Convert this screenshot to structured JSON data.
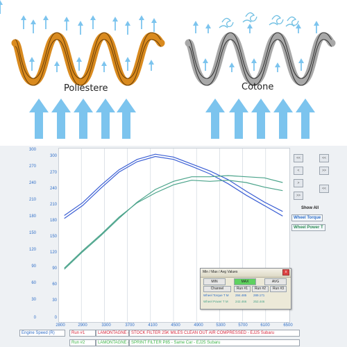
{
  "top_illustration": {
    "left_label": "Poliestere",
    "right_label": "Cotone",
    "colors": {
      "polyester": "#d98a1e",
      "cotton": "#a8a8a8",
      "air_arrow": "#7cc4ee",
      "dirt": "#9ad3ee"
    },
    "icons": {
      "small_arrow": "up-arrow-icon",
      "large_arrow": "large-up-arrow-icon",
      "swirl": "dust-swirl-icon"
    }
  },
  "dyno": {
    "y_ticks_left": [
      "300",
      "270",
      "240",
      "210",
      "180",
      "150",
      "120",
      "90",
      "60",
      "30",
      "0"
    ],
    "y_ticks_inner": [
      "300",
      "270",
      "240",
      "210",
      "180",
      "150",
      "120",
      "90",
      "60",
      "30",
      "0"
    ],
    "x_ticks": [
      "2800",
      "2900",
      "3300",
      "3700",
      "4100",
      "4500",
      "4900",
      "5300",
      "5700",
      "6100",
      "6500"
    ],
    "side_buttons": [
      "<<",
      "<",
      ">",
      ">>"
    ],
    "show_all_label": "Show All",
    "legend_tabs": [
      "Wheel Torque",
      "Wheel Power T"
    ],
    "bottom_rows": [
      {
        "axis": "Engine Speed (R)",
        "run": "Run #1",
        "name": "LAMONTAGNE (LAMC",
        "desc": "STOCK FILTER 25K MILES CLEAN OUT AIR COMPRESSED - EJ25 Subaru",
        "color": "#d6253a"
      },
      {
        "axis": "",
        "run": "Run #2",
        "name": "LAMONTAGNE (LAMC",
        "desc": "SPRINT FILTER P85 - Same Car - EJ25 Subaru",
        "color": "#3fb54a"
      }
    ],
    "popup": {
      "title": "Min / Max / Avg Values",
      "buttons": [
        "MIN",
        "MAX",
        "AVG"
      ],
      "header": [
        "Channel",
        "Run #1",
        "Run #2",
        "Run #3"
      ],
      "rows": [
        [
          "Wheel Torque T M",
          "284.485",
          "289.171",
          ""
        ],
        [
          "Wheel Power T M",
          "242.466",
          "252.446",
          ""
        ]
      ],
      "close": "x"
    }
  },
  "chart_data": {
    "type": "line",
    "x": [
      2800,
      3100,
      3400,
      3700,
      4000,
      4300,
      4600,
      4900,
      5200,
      5500,
      5800,
      6100,
      6400
    ],
    "ylim": [
      0,
      300
    ],
    "xlim": [
      2700,
      6500
    ],
    "series": [
      {
        "name": "Wheel Torque Run #1",
        "color": "#3b5fd4",
        "values": [
          178,
          200,
          230,
          258,
          276,
          285,
          280,
          268,
          255,
          238,
          218,
          200,
          182
        ]
      },
      {
        "name": "Wheel Torque Run #2",
        "color": "#3b5fd4",
        "values": [
          183,
          205,
          235,
          262,
          280,
          289,
          284,
          272,
          260,
          245,
          225,
          206,
          190
        ]
      },
      {
        "name": "Wheel Power Run #1",
        "color": "#4aa38a",
        "values": [
          92,
          122,
          150,
          180,
          205,
          222,
          236,
          244,
          242,
          244,
          240,
          232,
          226
        ]
      },
      {
        "name": "Wheel Power Run #2",
        "color": "#4aa38a",
        "values": [
          90,
          120,
          148,
          178,
          206,
          228,
          242,
          250,
          250,
          252,
          250,
          248,
          240
        ]
      }
    ]
  }
}
